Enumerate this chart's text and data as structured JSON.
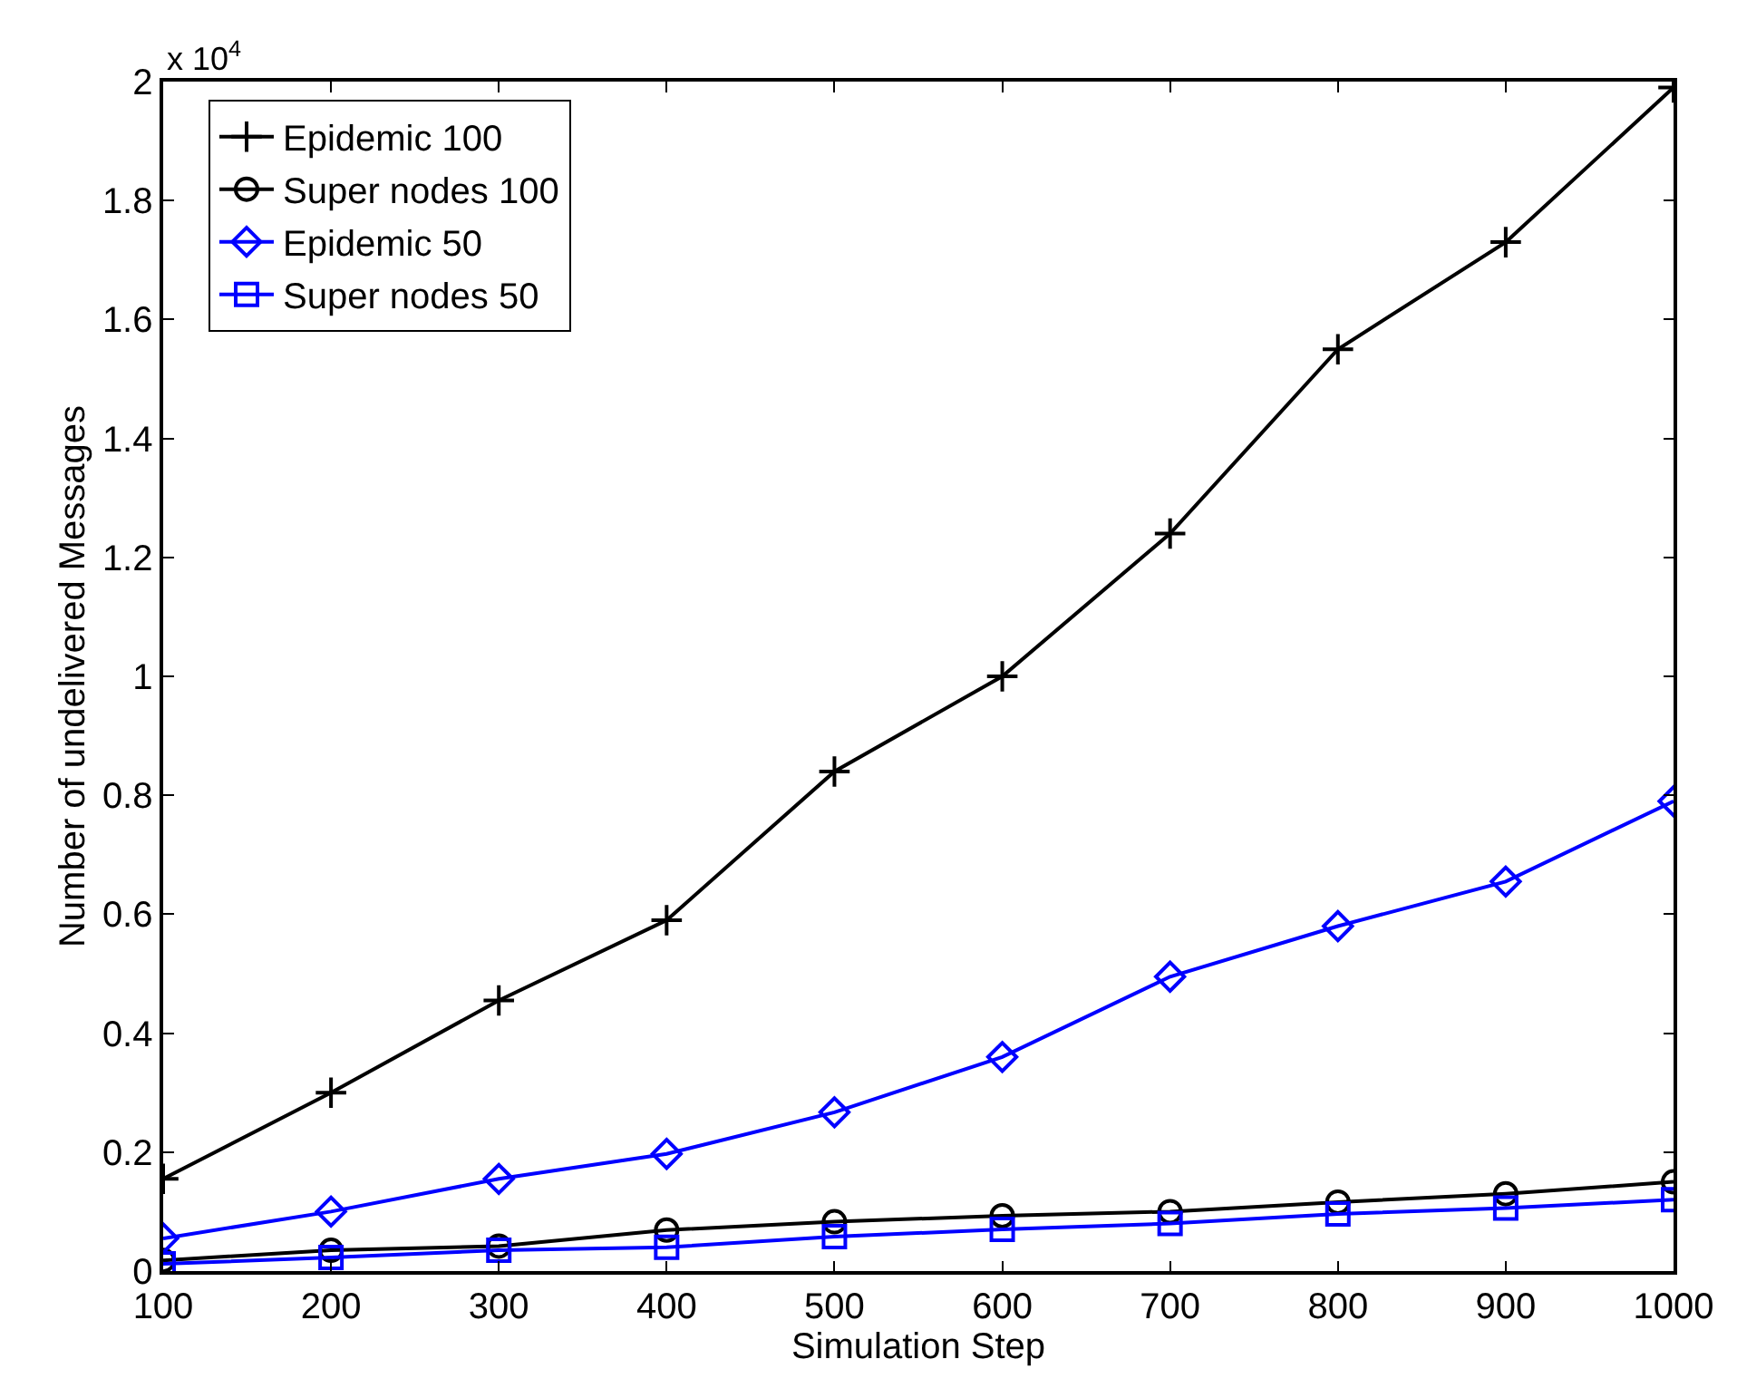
{
  "chart_data": {
    "type": "line",
    "xlabel": "Simulation Step",
    "ylabel": "Number of undelivered Messages",
    "annotations": [
      "x 10$^{4}$"
    ],
    "x": [
      100,
      200,
      300,
      400,
      500,
      600,
      700,
      800,
      900,
      1000
    ],
    "series": [
      {
        "name": "Epidemic 100",
        "color": "#000000",
        "marker": "cross",
        "values": [
          0.155,
          0.3,
          0.455,
          0.59,
          0.84,
          1.0,
          1.24,
          1.55,
          1.73,
          1.99
        ]
      },
      {
        "name": "Super nodes 100",
        "color": "#000000",
        "marker": "circle",
        "values": [
          0.018,
          0.035,
          0.042,
          0.069,
          0.083,
          0.093,
          0.1,
          0.116,
          0.13,
          0.15
        ]
      },
      {
        "name": "Epidemic 50",
        "color": "#0000ff",
        "marker": "diamond",
        "values": [
          0.055,
          0.1,
          0.155,
          0.197,
          0.267,
          0.36,
          0.495,
          0.58,
          0.655,
          0.79
        ]
      },
      {
        "name": "Super nodes 50",
        "color": "#0000ff",
        "marker": "square",
        "values": [
          0.012,
          0.023,
          0.035,
          0.04,
          0.058,
          0.07,
          0.08,
          0.096,
          0.106,
          0.12
        ]
      }
    ],
    "xlim": [
      100,
      1000
    ],
    "xticks": [
      100,
      200,
      300,
      400,
      500,
      600,
      700,
      800,
      900,
      1000
    ],
    "ylim": [
      0,
      2
    ],
    "yticks": [
      0,
      0.2,
      0.4,
      0.6,
      0.8,
      1,
      1.2,
      1.4,
      1.6,
      1.8,
      2
    ],
    "legend": "top left",
    "line_style": "solid"
  }
}
